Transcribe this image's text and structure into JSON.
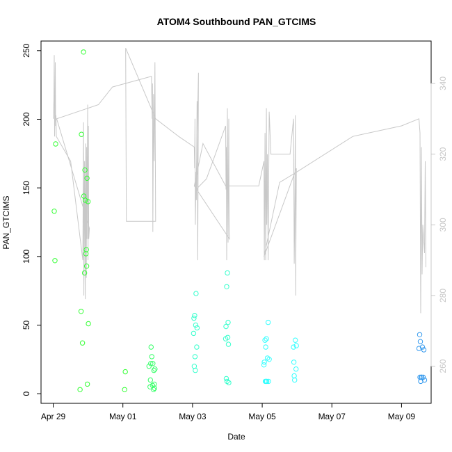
{
  "chart_data": {
    "type": "scatter",
    "title": "ATOM4 Southbound PAN_GTCIMS",
    "xlabel": "Date",
    "ylabel": "PAN_GTCIMS",
    "x_unit": "days",
    "x_origin_date": "2016-04-29",
    "x_ticks": [
      {
        "x": 0,
        "label": "Apr 29"
      },
      {
        "x": 2,
        "label": "May 01"
      },
      {
        "x": 4,
        "label": "May 03"
      },
      {
        "x": 6,
        "label": "May 05"
      },
      {
        "x": 8,
        "label": "May 07"
      },
      {
        "x": 10,
        "label": "May 09"
      }
    ],
    "xlim": [
      -0.35,
      10.85
    ],
    "ylim": [
      -7,
      257
    ],
    "y_ticks": [
      0,
      50,
      100,
      150,
      200,
      250
    ],
    "y2lim": [
      249.5,
      352
    ],
    "y2_ticks": [
      260,
      280,
      300,
      320,
      340
    ],
    "grid": false,
    "legend": "none",
    "scatter_series": {
      "points": [
        {
          "x": 0.03,
          "y": 133,
          "c": "#33ff33"
        },
        {
          "x": 0.05,
          "y": 97,
          "c": "#33ff33"
        },
        {
          "x": 0.07,
          "y": 182,
          "c": "#33ff33"
        },
        {
          "x": 0.77,
          "y": 3,
          "c": "#33ff33"
        },
        {
          "x": 0.8,
          "y": 60,
          "c": "#33ff33"
        },
        {
          "x": 0.81,
          "y": 189,
          "c": "#33ff33"
        },
        {
          "x": 0.84,
          "y": 37,
          "c": "#33ff33"
        },
        {
          "x": 0.87,
          "y": 249,
          "c": "#33ff33"
        },
        {
          "x": 0.88,
          "y": 144,
          "c": "#33ff33"
        },
        {
          "x": 0.9,
          "y": 88,
          "c": "#33ff33"
        },
        {
          "x": 0.91,
          "y": 163,
          "c": "#33ff33"
        },
        {
          "x": 0.92,
          "y": 141,
          "c": "#33ff33"
        },
        {
          "x": 0.94,
          "y": 102,
          "c": "#33ff33"
        },
        {
          "x": 0.95,
          "y": 105,
          "c": "#33ff33"
        },
        {
          "x": 0.96,
          "y": 93,
          "c": "#33ff33"
        },
        {
          "x": 0.97,
          "y": 157,
          "c": "#33ff33"
        },
        {
          "x": 0.98,
          "y": 7,
          "c": "#33ff33"
        },
        {
          "x": 1.0,
          "y": 140,
          "c": "#33ff33"
        },
        {
          "x": 1.01,
          "y": 51,
          "c": "#33ff33"
        },
        {
          "x": 2.05,
          "y": 3,
          "c": "#33ff33"
        },
        {
          "x": 2.07,
          "y": 16,
          "c": "#33ff33"
        },
        {
          "x": 2.75,
          "y": 20,
          "c": "#33ff66"
        },
        {
          "x": 2.78,
          "y": 5,
          "c": "#33ff66"
        },
        {
          "x": 2.79,
          "y": 10,
          "c": "#33ff66"
        },
        {
          "x": 2.8,
          "y": 22,
          "c": "#33ff66"
        },
        {
          "x": 2.81,
          "y": 34,
          "c": "#33ff66"
        },
        {
          "x": 2.83,
          "y": 27,
          "c": "#33ff66"
        },
        {
          "x": 2.85,
          "y": 6,
          "c": "#33ff66"
        },
        {
          "x": 2.86,
          "y": 22,
          "c": "#33ff66"
        },
        {
          "x": 2.88,
          "y": 3,
          "c": "#33ff66"
        },
        {
          "x": 2.89,
          "y": 17,
          "c": "#33ff66"
        },
        {
          "x": 2.9,
          "y": 7,
          "c": "#33ff66"
        },
        {
          "x": 2.91,
          "y": 4,
          "c": "#33ff66"
        },
        {
          "x": 2.92,
          "y": 18,
          "c": "#33ff66"
        },
        {
          "x": 4.03,
          "y": 44,
          "c": "#33ffcc"
        },
        {
          "x": 4.04,
          "y": 55,
          "c": "#33ffcc"
        },
        {
          "x": 4.05,
          "y": 20,
          "c": "#33ffcc"
        },
        {
          "x": 4.06,
          "y": 57,
          "c": "#33ffcc"
        },
        {
          "x": 4.07,
          "y": 27,
          "c": "#33ffcc"
        },
        {
          "x": 4.08,
          "y": 17,
          "c": "#33ffcc"
        },
        {
          "x": 4.09,
          "y": 50,
          "c": "#33ffcc"
        },
        {
          "x": 4.1,
          "y": 73,
          "c": "#33ffcc"
        },
        {
          "x": 4.12,
          "y": 34,
          "c": "#33ffcc"
        },
        {
          "x": 4.13,
          "y": 48,
          "c": "#33ffcc"
        },
        {
          "x": 4.95,
          "y": 40,
          "c": "#33ffcc"
        },
        {
          "x": 4.96,
          "y": 49,
          "c": "#33ffcc"
        },
        {
          "x": 4.97,
          "y": 11,
          "c": "#33ffcc"
        },
        {
          "x": 4.98,
          "y": 78,
          "c": "#33ffcc"
        },
        {
          "x": 4.99,
          "y": 9,
          "c": "#33ffcc"
        },
        {
          "x": 5.0,
          "y": 88,
          "c": "#33ffcc"
        },
        {
          "x": 5.01,
          "y": 41,
          "c": "#33ffcc"
        },
        {
          "x": 5.02,
          "y": 52,
          "c": "#33ffcc"
        },
        {
          "x": 5.03,
          "y": 36,
          "c": "#33ffcc"
        },
        {
          "x": 5.04,
          "y": 8,
          "c": "#33ffcc"
        },
        {
          "x": 6.05,
          "y": 21,
          "c": "#33ffff"
        },
        {
          "x": 6.06,
          "y": 23,
          "c": "#33ffff"
        },
        {
          "x": 6.08,
          "y": 39,
          "c": "#33ffff"
        },
        {
          "x": 6.09,
          "y": 9,
          "c": "#33ffff"
        },
        {
          "x": 6.1,
          "y": 34,
          "c": "#33ffff"
        },
        {
          "x": 6.11,
          "y": 9,
          "c": "#33ffff"
        },
        {
          "x": 6.12,
          "y": 40,
          "c": "#33ffff"
        },
        {
          "x": 6.13,
          "y": 9,
          "c": "#33ffff"
        },
        {
          "x": 6.15,
          "y": 26,
          "c": "#33ffff"
        },
        {
          "x": 6.17,
          "y": 52,
          "c": "#33ffff"
        },
        {
          "x": 6.18,
          "y": 9,
          "c": "#33ffff"
        },
        {
          "x": 6.2,
          "y": 25,
          "c": "#33ffff"
        },
        {
          "x": 6.9,
          "y": 34,
          "c": "#33ffff"
        },
        {
          "x": 6.91,
          "y": 23,
          "c": "#33ffff"
        },
        {
          "x": 6.92,
          "y": 13,
          "c": "#33ffff"
        },
        {
          "x": 6.93,
          "y": 10,
          "c": "#33ffff"
        },
        {
          "x": 6.95,
          "y": 39,
          "c": "#33ffff"
        },
        {
          "x": 6.97,
          "y": 18,
          "c": "#33ffff"
        },
        {
          "x": 6.98,
          "y": 35,
          "c": "#33ffff"
        },
        {
          "x": 10.5,
          "y": 33,
          "c": "#3399ee"
        },
        {
          "x": 10.52,
          "y": 43,
          "c": "#3399ee"
        },
        {
          "x": 10.53,
          "y": 12,
          "c": "#3399ee"
        },
        {
          "x": 10.54,
          "y": 38,
          "c": "#3399ee"
        },
        {
          "x": 10.55,
          "y": 9,
          "c": "#3399ee"
        },
        {
          "x": 10.57,
          "y": 12,
          "c": "#3399ee"
        },
        {
          "x": 10.58,
          "y": 12,
          "c": "#3399ee"
        },
        {
          "x": 10.6,
          "y": 34,
          "c": "#3399ee"
        },
        {
          "x": 10.62,
          "y": 12,
          "c": "#3399ee"
        },
        {
          "x": 10.64,
          "y": 32,
          "c": "#3399ee"
        },
        {
          "x": 10.66,
          "y": 10,
          "c": "#3399ee"
        }
      ]
    },
    "line_series": {
      "axis": "right",
      "color": "#c8c8c8",
      "points": [
        [
          0.0,
          330
        ],
        [
          0.02,
          335
        ],
        [
          0.03,
          348
        ],
        [
          0.04,
          325
        ],
        [
          0.05,
          331
        ],
        [
          0.06,
          346
        ],
        [
          0.07,
          328
        ],
        [
          0.08,
          331
        ],
        [
          0.09,
          325
        ],
        [
          0.5,
          318
        ],
        [
          0.85,
          290
        ],
        [
          0.87,
          329
        ],
        [
          0.88,
          280
        ],
        [
          0.9,
          318
        ],
        [
          0.92,
          279
        ],
        [
          0.93,
          323
        ],
        [
          0.95,
          285
        ],
        [
          0.96,
          322
        ],
        [
          0.97,
          296
        ],
        [
          0.99,
          334
        ],
        [
          1.0,
          290
        ],
        [
          1.01,
          328
        ],
        [
          1.02,
          296
        ],
        [
          1.04,
          299
        ],
        [
          0.1,
          330
        ],
        [
          1.3,
          334
        ],
        [
          1.7,
          339
        ],
        [
          2.82,
          342
        ],
        [
          2.84,
          330
        ],
        [
          2.85,
          340
        ],
        [
          2.86,
          298
        ],
        [
          2.88,
          337
        ],
        [
          2.9,
          318
        ],
        [
          2.92,
          346
        ],
        [
          2.94,
          301
        ],
        [
          2.1,
          301
        ],
        [
          2.08,
          350
        ],
        [
          2.94,
          330
        ],
        [
          3.6,
          325
        ],
        [
          4.05,
          322
        ],
        [
          4.06,
          316
        ],
        [
          4.07,
          330
        ],
        [
          4.08,
          300
        ],
        [
          4.1,
          315
        ],
        [
          4.11,
          307
        ],
        [
          4.13,
          335
        ],
        [
          4.15,
          290
        ],
        [
          4.17,
          343
        ],
        [
          4.1,
          310
        ],
        [
          4.4,
          313
        ],
        [
          4.95,
          328
        ],
        [
          4.96,
          310
        ],
        [
          4.97,
          322
        ],
        [
          4.98,
          290
        ],
        [
          5.0,
          333
        ],
        [
          5.01,
          310
        ],
        [
          5.02,
          295
        ],
        [
          5.04,
          330
        ],
        [
          5.05,
          299
        ],
        [
          5.06,
          296
        ],
        [
          4.05,
          311
        ],
        [
          4.3,
          323
        ],
        [
          4.95,
          311
        ],
        [
          5.9,
          311
        ],
        [
          6.05,
          318
        ],
        [
          6.06,
          290
        ],
        [
          6.08,
          326
        ],
        [
          6.1,
          290
        ],
        [
          6.12,
          333
        ],
        [
          6.13,
          300
        ],
        [
          6.15,
          320
        ],
        [
          6.17,
          290
        ],
        [
          6.2,
          332
        ],
        [
          6.25,
          320
        ],
        [
          6.8,
          320
        ],
        [
          6.9,
          330
        ],
        [
          6.92,
          289
        ],
        [
          6.93,
          299
        ],
        [
          6.95,
          331
        ],
        [
          6.96,
          280
        ],
        [
          6.97,
          300
        ],
        [
          6.98,
          316
        ],
        [
          6.05,
          291
        ],
        [
          6.5,
          312
        ],
        [
          7.0,
          315
        ],
        [
          8.6,
          325
        ],
        [
          10.0,
          328
        ],
        [
          10.5,
          330
        ],
        [
          10.53,
          326
        ],
        [
          10.55,
          275
        ],
        [
          10.57,
          322
        ],
        [
          10.59,
          286
        ],
        [
          10.61,
          300
        ],
        [
          10.64,
          295
        ],
        [
          10.66,
          292
        ],
        [
          10.68,
          318
        ],
        [
          10.7,
          288
        ]
      ]
    }
  }
}
